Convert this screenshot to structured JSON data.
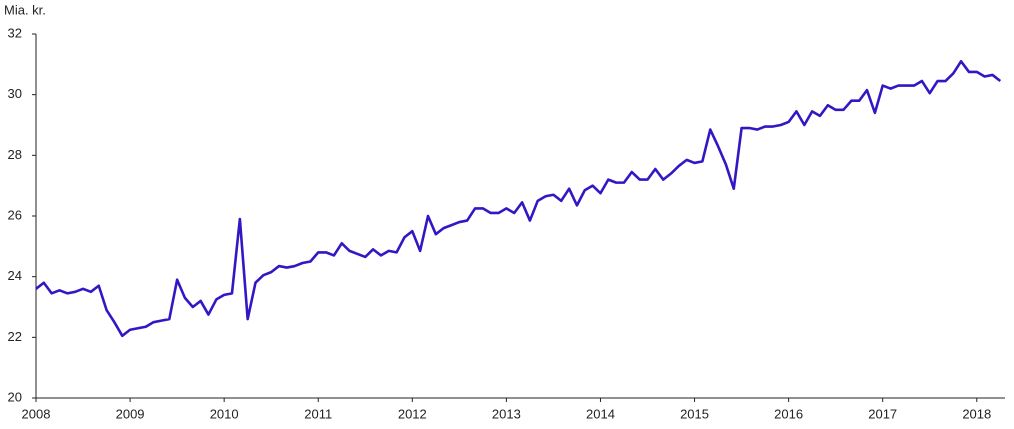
{
  "chart_data": {
    "type": "line",
    "title": "Mia. kr.",
    "x": [
      2008,
      2008.083,
      2008.167,
      2008.25,
      2008.333,
      2008.417,
      2008.5,
      2008.583,
      2008.667,
      2008.75,
      2008.833,
      2008.917,
      2009,
      2009.083,
      2009.167,
      2009.25,
      2009.333,
      2009.417,
      2009.5,
      2009.583,
      2009.667,
      2009.75,
      2009.833,
      2009.917,
      2010,
      2010.083,
      2010.167,
      2010.25,
      2010.333,
      2010.417,
      2010.5,
      2010.583,
      2010.667,
      2010.75,
      2010.833,
      2010.917,
      2011,
      2011.083,
      2011.167,
      2011.25,
      2011.333,
      2011.417,
      2011.5,
      2011.583,
      2011.667,
      2011.75,
      2011.833,
      2011.917,
      2012,
      2012.083,
      2012.167,
      2012.25,
      2012.333,
      2012.417,
      2012.5,
      2012.583,
      2012.667,
      2012.75,
      2012.833,
      2012.917,
      2013,
      2013.083,
      2013.167,
      2013.25,
      2013.333,
      2013.417,
      2013.5,
      2013.583,
      2013.667,
      2013.75,
      2013.833,
      2013.917,
      2014,
      2014.083,
      2014.167,
      2014.25,
      2014.333,
      2014.417,
      2014.5,
      2014.583,
      2014.667,
      2014.75,
      2014.833,
      2014.917,
      2015,
      2015.083,
      2015.167,
      2015.25,
      2015.333,
      2015.417,
      2015.5,
      2015.583,
      2015.667,
      2015.75,
      2015.833,
      2015.917,
      2016,
      2016.083,
      2016.167,
      2016.25,
      2016.333,
      2016.417,
      2016.5,
      2016.583,
      2016.667,
      2016.75,
      2016.833,
      2016.917,
      2017,
      2017.083,
      2017.167,
      2017.25,
      2017.333,
      2017.417,
      2017.5,
      2017.583,
      2017.667,
      2017.75,
      2017.833,
      2017.917,
      2018,
      2018.083,
      2018.167,
      2018.25
    ],
    "series": [
      {
        "color": "#3317c4",
        "values": [
          23.6,
          23.8,
          23.45,
          23.55,
          23.45,
          23.5,
          23.6,
          23.5,
          23.7,
          22.9,
          22.5,
          22.05,
          22.25,
          22.3,
          22.35,
          22.5,
          22.55,
          22.6,
          23.9,
          23.3,
          23.0,
          23.2,
          22.75,
          23.25,
          23.4,
          23.45,
          25.9,
          22.6,
          23.8,
          24.05,
          24.15,
          24.35,
          24.3,
          24.35,
          24.45,
          24.5,
          24.8,
          24.8,
          24.7,
          25.1,
          24.85,
          24.75,
          24.65,
          24.9,
          24.7,
          24.85,
          24.8,
          25.3,
          25.5,
          24.85,
          26.0,
          25.4,
          25.6,
          25.7,
          25.8,
          25.85,
          26.25,
          26.25,
          26.1,
          26.1,
          26.25,
          26.1,
          26.45,
          25.85,
          26.5,
          26.65,
          26.7,
          26.5,
          26.9,
          26.35,
          26.85,
          27.0,
          26.75,
          27.2,
          27.1,
          27.1,
          27.45,
          27.2,
          27.2,
          27.55,
          27.2,
          27.4,
          27.65,
          27.85,
          27.75,
          27.8,
          28.85,
          28.3,
          27.7,
          26.9,
          28.9,
          28.9,
          28.85,
          28.95,
          28.95,
          29.0,
          29.1,
          29.45,
          29.0,
          29.45,
          29.3,
          29.65,
          29.5,
          29.5,
          29.8,
          29.8,
          30.15,
          29.4,
          30.3,
          30.2,
          30.3,
          30.3,
          30.3,
          30.45,
          30.05,
          30.45,
          30.45,
          30.7,
          31.1,
          30.75,
          30.75,
          30.6,
          30.65,
          30.45
        ]
      }
    ],
    "xlim": [
      2008,
      2018.3
    ],
    "xticks": [
      2008,
      2009,
      2010,
      2011,
      2012,
      2013,
      2014,
      2015,
      2016,
      2017,
      2018
    ],
    "ylim": [
      20,
      32
    ],
    "yticks": [
      20,
      22,
      24,
      26,
      28,
      30,
      32
    ]
  }
}
